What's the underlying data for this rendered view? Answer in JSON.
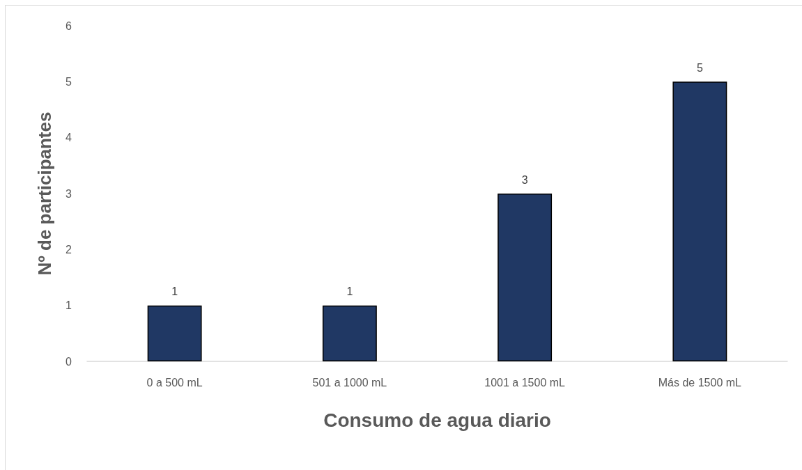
{
  "chart_data": {
    "type": "bar",
    "xlabel": "Consumo de agua diario",
    "ylabel": "Nº de participantes",
    "categories": [
      "0 a 500 mL",
      "501 a 1000 mL",
      "1001 a 1500 mL",
      "Más de 1500 mL"
    ],
    "values": [
      1,
      1,
      3,
      5
    ],
    "color": "#203864",
    "ylim": [
      0,
      6
    ],
    "yticks": [
      0,
      1,
      2,
      3,
      4,
      5,
      6
    ],
    "data_labels": true
  }
}
